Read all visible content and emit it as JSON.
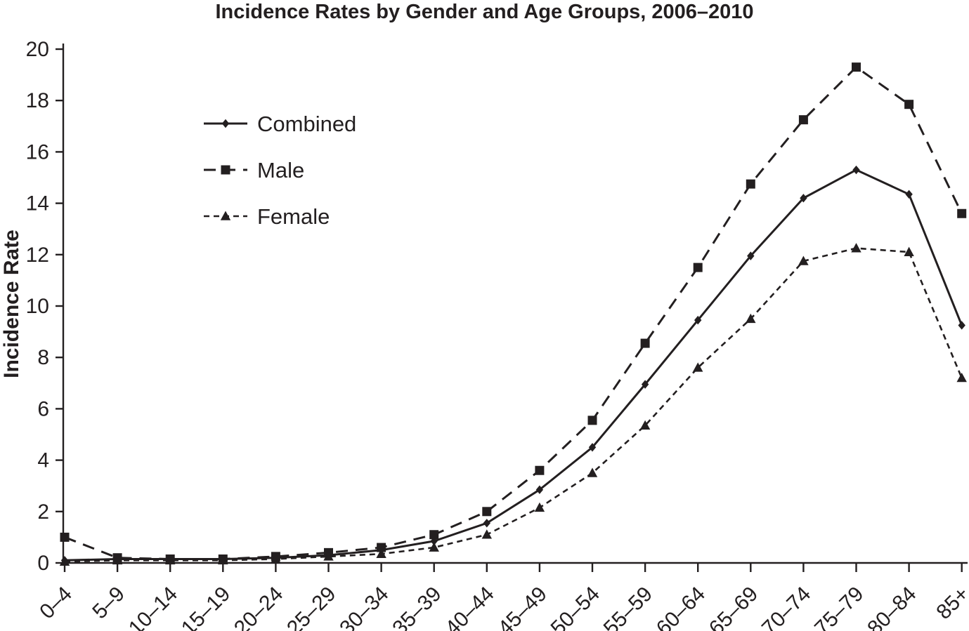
{
  "figure": {
    "title": "Incidence Rates by Gender and Age Groups, 2006–2010",
    "y_axis_title": "Incidence Rate"
  },
  "chart_data": {
    "type": "line",
    "title": "Incidence Rates by Gender and Age Groups, 2006–2010",
    "xlabel": "",
    "ylabel": "Incidence Rate",
    "ylim": [
      0,
      20
    ],
    "y_ticks": [
      0,
      2,
      4,
      6,
      8,
      10,
      12,
      14,
      16,
      18,
      20
    ],
    "grid": false,
    "legend_position": "inside-upper-left",
    "background_color": "#ffffff",
    "ink_color": "#231f20",
    "categories": [
      "0–4",
      "5–9",
      "10–14",
      "15–19",
      "20–24",
      "25–29",
      "30–34",
      "35–39",
      "40–44",
      "45–49",
      "50–54",
      "55–59",
      "60–64",
      "65–69",
      "70–74",
      "75–79",
      "80–84",
      "85+"
    ],
    "series": [
      {
        "name": "Combined",
        "marker": "diamond",
        "line_style": "solid",
        "values": [
          0.1,
          0.15,
          0.15,
          0.15,
          0.2,
          0.3,
          0.5,
          0.85,
          1.55,
          2.85,
          4.5,
          6.95,
          9.45,
          11.95,
          14.2,
          15.3,
          14.35,
          9.25
        ]
      },
      {
        "name": "Male",
        "marker": "square",
        "line_style": "dashed",
        "values": [
          1.0,
          0.2,
          0.15,
          0.15,
          0.25,
          0.4,
          0.6,
          1.1,
          2.0,
          3.6,
          5.55,
          8.55,
          11.5,
          14.75,
          17.25,
          19.3,
          17.85,
          13.6
        ]
      },
      {
        "name": "Female",
        "marker": "triangle",
        "line_style": "short-dashed",
        "values": [
          0.05,
          0.1,
          0.1,
          0.1,
          0.15,
          0.25,
          0.35,
          0.6,
          1.1,
          2.15,
          3.5,
          5.35,
          7.6,
          9.5,
          11.75,
          12.25,
          12.1,
          7.2
        ]
      }
    ]
  }
}
